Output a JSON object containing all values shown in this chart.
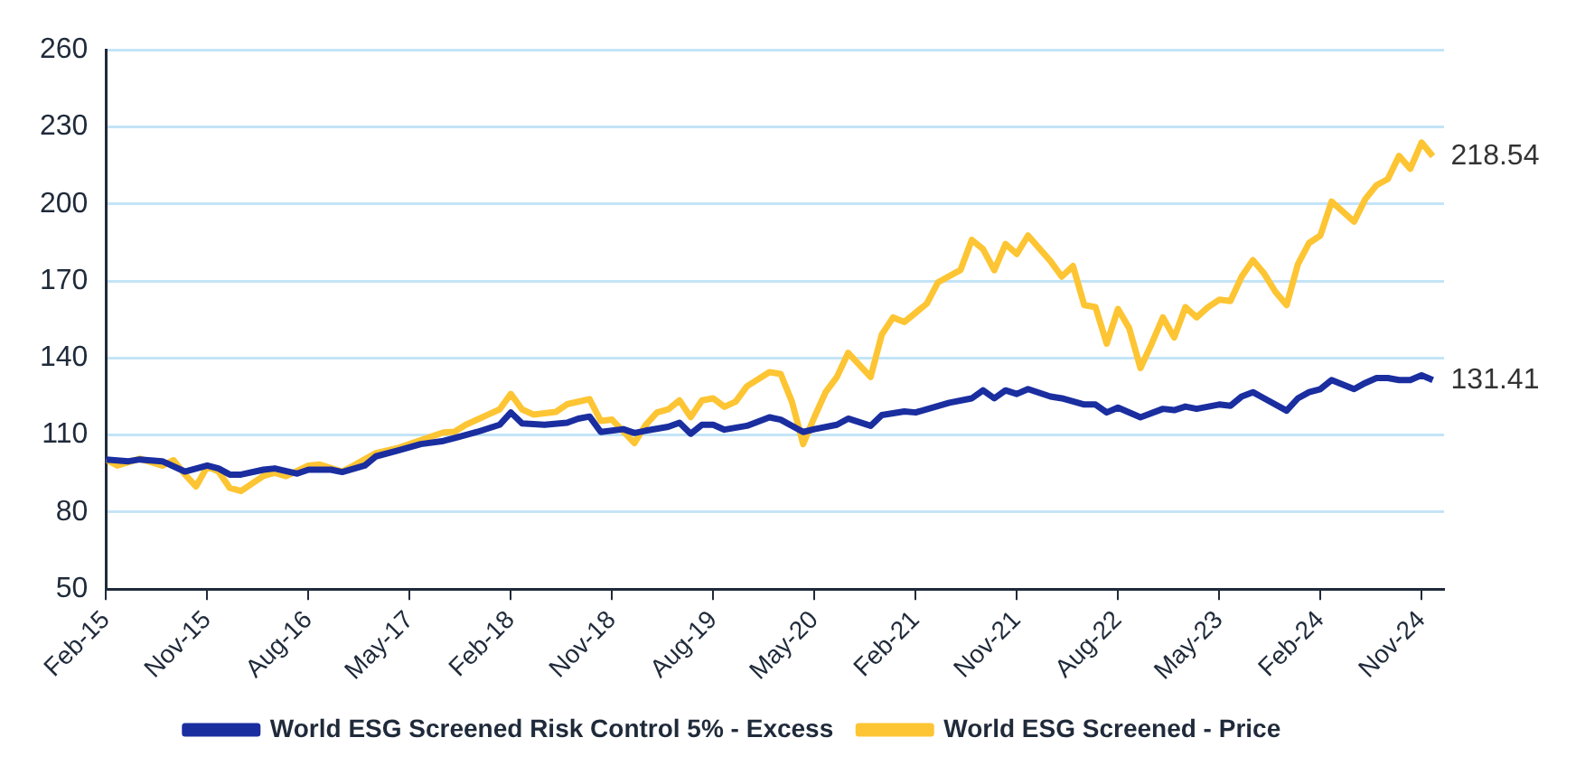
{
  "chart_data": {
    "type": "line",
    "xlim": [
      "2015-02",
      "2025-01"
    ],
    "xticks": [
      {
        "value": "2015-02",
        "label": "Feb-15"
      },
      {
        "value": "2015-11",
        "label": "Nov-15"
      },
      {
        "value": "2016-08",
        "label": "Aug-16"
      },
      {
        "value": "2017-05",
        "label": "May-17"
      },
      {
        "value": "2018-02",
        "label": "Feb-18"
      },
      {
        "value": "2018-11",
        "label": "Nov-18"
      },
      {
        "value": "2019-08",
        "label": "Aug-19"
      },
      {
        "value": "2020-05",
        "label": "May-20"
      },
      {
        "value": "2021-02",
        "label": "Feb-21"
      },
      {
        "value": "2021-11",
        "label": "Nov-21"
      },
      {
        "value": "2022-08",
        "label": "Aug-22"
      },
      {
        "value": "2023-05",
        "label": "May-23"
      },
      {
        "value": "2024-02",
        "label": "Feb-24"
      },
      {
        "value": "2024-11",
        "label": "Nov-24"
      }
    ],
    "ylim": [
      50,
      260
    ],
    "yticks": [
      50,
      80,
      110,
      140,
      170,
      200,
      230,
      260
    ],
    "grid": "y",
    "legend": "bottom",
    "marker": "none",
    "line_style": "solid",
    "series": [
      {
        "name": "World ESG Screened Risk Control 5% - Excess",
        "color": "#1a2ea0",
        "x": [
          "2015-02",
          "2015-04",
          "2015-05",
          "2015-07",
          "2015-09",
          "2015-11",
          "2015-12",
          "2016-01",
          "2016-02",
          "2016-04",
          "2016-05",
          "2016-07",
          "2016-08",
          "2016-10",
          "2016-11",
          "2017-01",
          "2017-02",
          "2017-04",
          "2017-06",
          "2017-08",
          "2017-11",
          "2018-01",
          "2018-02",
          "2018-03",
          "2018-05",
          "2018-07",
          "2018-08",
          "2018-09",
          "2018-10",
          "2018-12",
          "2019-01",
          "2019-02",
          "2019-04",
          "2019-05",
          "2019-06",
          "2019-07",
          "2019-08",
          "2019-09",
          "2019-11",
          "2020-01",
          "2020-02",
          "2020-04",
          "2020-05",
          "2020-07",
          "2020-08",
          "2020-10",
          "2020-11",
          "2021-01",
          "2021-02",
          "2021-05",
          "2021-07",
          "2021-08",
          "2021-09",
          "2021-10",
          "2021-11",
          "2021-12",
          "2022-02",
          "2022-03",
          "2022-05",
          "2022-06",
          "2022-07",
          "2022-08",
          "2022-10",
          "2022-12",
          "2023-01",
          "2023-02",
          "2023-03",
          "2023-05",
          "2023-06",
          "2023-07",
          "2023-08",
          "2023-09",
          "2023-11",
          "2023-12",
          "2024-01",
          "2024-02",
          "2024-03",
          "2024-05",
          "2024-06",
          "2024-07",
          "2024-08",
          "2024-09",
          "2024-10",
          "2024-11",
          "2024-12"
        ],
        "values": [
          100.5,
          99.8,
          100.5,
          99.8,
          95.8,
          98.1,
          97,
          94.6,
          94.6,
          96.5,
          97,
          95,
          96.5,
          96.5,
          95.6,
          98.1,
          101.7,
          104,
          106.5,
          107.7,
          111.2,
          114,
          118.8,
          114.5,
          114,
          114.8,
          116.4,
          117.2,
          111.2,
          112.3,
          110.8,
          111.7,
          113.2,
          114.8,
          110.5,
          114,
          114,
          112.1,
          113.6,
          116.9,
          116,
          111.2,
          112.3,
          114,
          116.4,
          113.6,
          117.8,
          119.2,
          118.8,
          122.6,
          124.3,
          127.4,
          124.3,
          127.4,
          126,
          127.9,
          125,
          124.3,
          121.9,
          121.9,
          118.8,
          120.7,
          116.9,
          120.2,
          119.7,
          121.1,
          120.2,
          121.9,
          121.4,
          125,
          126.7,
          124.3,
          119.5,
          124.3,
          126.7,
          127.9,
          131.4,
          127.9,
          130.3,
          132.2,
          132.2,
          131.4,
          131.4,
          133.3,
          131.41
        ],
        "value_labels": [
          null,
          null,
          null,
          null,
          null,
          null,
          null,
          null,
          null,
          null,
          null,
          null,
          null,
          null,
          null,
          null,
          null,
          null,
          null,
          null,
          null,
          null,
          null,
          null,
          null,
          null,
          null,
          null,
          null,
          null,
          null,
          null,
          null,
          null,
          null,
          null,
          null,
          null,
          null,
          null,
          null,
          null,
          null,
          null,
          null,
          null,
          null,
          null,
          null,
          null,
          null,
          null,
          null,
          null,
          null,
          null,
          null,
          null,
          null,
          null,
          null,
          null,
          null,
          null,
          null,
          null,
          null,
          null,
          null,
          null,
          null,
          null,
          null,
          null,
          null,
          null,
          null,
          null,
          null,
          null,
          null,
          null,
          null,
          null,
          "131.41"
        ]
      },
      {
        "name": "World ESG Screened - Price",
        "color": "#fdc533",
        "x": [
          "2015-02",
          "2015-03",
          "2015-05",
          "2015-07",
          "2015-08",
          "2015-09",
          "2015-10",
          "2015-11",
          "2015-12",
          "2016-01",
          "2016-02",
          "2016-04",
          "2016-05",
          "2016-06",
          "2016-08",
          "2016-09",
          "2016-11",
          "2016-12",
          "2017-02",
          "2017-04",
          "2017-06",
          "2017-08",
          "2017-09",
          "2017-10",
          "2017-12",
          "2018-01",
          "2018-02",
          "2018-03",
          "2018-04",
          "2018-06",
          "2018-07",
          "2018-09",
          "2018-10",
          "2018-11",
          "2019-01",
          "2019-02",
          "2019-03",
          "2019-04",
          "2019-05",
          "2019-06",
          "2019-07",
          "2019-08",
          "2019-09",
          "2019-10",
          "2019-11",
          "2020-01",
          "2020-02",
          "2020-03",
          "2020-04",
          "2020-05",
          "2020-06",
          "2020-07",
          "2020-08",
          "2020-10",
          "2020-11",
          "2020-12",
          "2021-01",
          "2021-03",
          "2021-04",
          "2021-06",
          "2021-07",
          "2021-08",
          "2021-09",
          "2021-10",
          "2021-11",
          "2021-12",
          "2022-02",
          "2022-03",
          "2022-04",
          "2022-05",
          "2022-06",
          "2022-07",
          "2022-08",
          "2022-09",
          "2022-10",
          "2022-11",
          "2022-12",
          "2023-01",
          "2023-02",
          "2023-03",
          "2023-04",
          "2023-05",
          "2023-06",
          "2023-07",
          "2023-08",
          "2023-09",
          "2023-10",
          "2023-11",
          "2023-12",
          "2024-01",
          "2024-02",
          "2024-03",
          "2024-05",
          "2024-06",
          "2024-07",
          "2024-08",
          "2024-09",
          "2024-10",
          "2024-11",
          "2024-12"
        ],
        "values": [
          100.5,
          98.1,
          100.8,
          98.1,
          100.2,
          94.7,
          90,
          97.7,
          95.8,
          89.4,
          88.2,
          94.1,
          95.3,
          94,
          98.1,
          98.5,
          95.8,
          98.1,
          103,
          105,
          108,
          111,
          111.3,
          114,
          118,
          120,
          126,
          120,
          118,
          119,
          122,
          124,
          115.5,
          116,
          106.9,
          114,
          118.8,
          120,
          123.5,
          117,
          123.5,
          124.3,
          121,
          123,
          129,
          134.5,
          133.8,
          123,
          106.5,
          117,
          126.7,
          132.6,
          142,
          132.6,
          149.2,
          155.8,
          154,
          161.2,
          169.5,
          174.3,
          186,
          182.4,
          174.2,
          184.4,
          180.5,
          187.7,
          177.7,
          171.7,
          175.8,
          160.6,
          159.8,
          145.6,
          159.1,
          151.6,
          136.1,
          145.6,
          155.8,
          148,
          159.8,
          155.8,
          159.8,
          162.7,
          162.2,
          171.7,
          178.1,
          172.9,
          165.8,
          160.6,
          176.5,
          184.8,
          187.7,
          200.9,
          193.1,
          201.9,
          207.3,
          209.7,
          218.7,
          213.7,
          223.9,
          218.54
        ],
        "value_labels": [
          null,
          null,
          null,
          null,
          null,
          null,
          null,
          null,
          null,
          null,
          null,
          null,
          null,
          null,
          null,
          null,
          null,
          null,
          null,
          null,
          null,
          null,
          null,
          null,
          null,
          null,
          null,
          null,
          null,
          null,
          null,
          null,
          null,
          null,
          null,
          null,
          null,
          null,
          null,
          null,
          null,
          null,
          null,
          null,
          null,
          null,
          null,
          null,
          null,
          null,
          null,
          null,
          null,
          null,
          null,
          null,
          null,
          null,
          null,
          null,
          null,
          null,
          null,
          null,
          null,
          null,
          null,
          null,
          null,
          null,
          null,
          null,
          null,
          null,
          null,
          null,
          null,
          null,
          null,
          null,
          null,
          null,
          null,
          null,
          null,
          null,
          null,
          null,
          null,
          null,
          null,
          null,
          null,
          null,
          null,
          null,
          null,
          null,
          null,
          "218.54"
        ]
      }
    ]
  }
}
